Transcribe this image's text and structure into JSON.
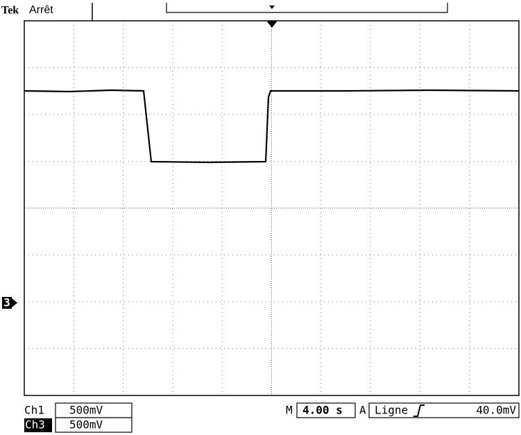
{
  "header": {
    "brand": "Tek",
    "status": "Arrêt"
  },
  "channels": [
    {
      "label": "Ch1",
      "scale": "500mV"
    },
    {
      "label": "Ch3",
      "scale": "500mV"
    }
  ],
  "timebase": {
    "label": "M",
    "scale": "4.00 s"
  },
  "trigger": {
    "label": "A",
    "source": "Ligne",
    "level": "40.0mV"
  },
  "ground_marker": "3"
}
